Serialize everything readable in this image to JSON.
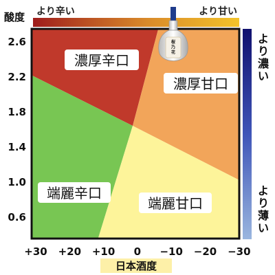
{
  "chart_data": {
    "type": "quadrant",
    "ylabel": "酸度",
    "xlabel": "日本酒度",
    "x_ticks": [
      "+30",
      "+20",
      "+10",
      "0",
      "−10",
      "−20",
      "−30"
    ],
    "y_ticks": [
      "2.6",
      "2.2",
      "1.8",
      "1.4",
      "1.0",
      "0.6"
    ],
    "x_range": [
      30,
      -30
    ],
    "y_range": [
      0.4,
      2.8
    ],
    "top_scale": {
      "left": "より辛い",
      "right": "より甘い"
    },
    "right_scale": {
      "top": "より濃い",
      "bottom": "より薄い"
    },
    "quadrants": [
      {
        "label": "濃厚辛口",
        "color": "#c0392b"
      },
      {
        "label": "濃厚甘口",
        "color": "#f2a55a"
      },
      {
        "label": "端麗辛口",
        "color": "#78c653"
      },
      {
        "label": "端麗甘口",
        "color": "#fdf49a"
      }
    ],
    "bottle_label": "桜乃花",
    "grid": false
  }
}
